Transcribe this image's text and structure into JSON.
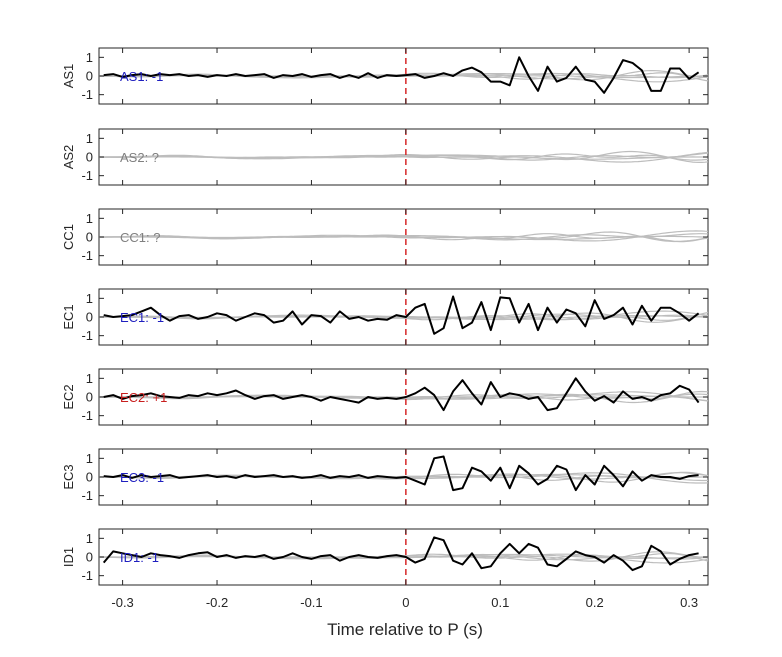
{
  "chart_data": {
    "type": "line",
    "xlabel": "Time relative to P (s)",
    "xlim": [
      -0.325,
      0.32
    ],
    "ylim": [
      -1.5,
      1.5
    ],
    "x_ticks": [
      -0.3,
      -0.2,
      -0.1,
      0,
      0.1,
      0.2,
      0.3
    ],
    "x_tick_labels": [
      "-0.3",
      "-0.2",
      "-0.1",
      "0",
      "0.1",
      "0.2",
      "0.3"
    ],
    "y_ticks": [
      -1,
      0,
      1
    ],
    "y_tick_labels": [
      "-1",
      "0",
      "1"
    ],
    "marker_line": {
      "x": 0,
      "color": "#d62728",
      "style": "dashed"
    },
    "colors": {
      "trace": "#000000",
      "background_traces": "#bdbdbd",
      "axis": "#262626"
    },
    "panels": [
      {
        "station": "AS1",
        "label": "AS1: -1",
        "label_color": "#1f1fbf",
        "trace_x": [
          -0.32,
          -0.31,
          -0.3,
          -0.29,
          -0.28,
          -0.27,
          -0.26,
          -0.25,
          -0.24,
          -0.23,
          -0.22,
          -0.21,
          -0.2,
          -0.19,
          -0.18,
          -0.17,
          -0.16,
          -0.15,
          -0.14,
          -0.13,
          -0.12,
          -0.11,
          -0.1,
          -0.09,
          -0.08,
          -0.07,
          -0.06,
          -0.05,
          -0.04,
          -0.03,
          -0.02,
          -0.01,
          0,
          0.01,
          0.02,
          0.03,
          0.04,
          0.05,
          0.06,
          0.07,
          0.08,
          0.09,
          0.1,
          0.11,
          0.12,
          0.13,
          0.14,
          0.15,
          0.16,
          0.17,
          0.18,
          0.19,
          0.2,
          0.21,
          0.22,
          0.23,
          0.24,
          0.25,
          0.26,
          0.27,
          0.28,
          0.29,
          0.3,
          0.31
        ],
        "trace_y": [
          0.05,
          0.1,
          -0.05,
          0.05,
          0.1,
          0.0,
          0.1,
          0.05,
          0.1,
          0.0,
          0.05,
          -0.05,
          0.05,
          0.0,
          0.1,
          0.0,
          0.05,
          0.1,
          -0.1,
          0.05,
          0.0,
          0.1,
          -0.05,
          0.05,
          0.1,
          -0.1,
          0.05,
          -0.1,
          0.15,
          -0.1,
          0.05,
          0.0,
          0.05,
          0.1,
          -0.1,
          0.0,
          0.15,
          0.0,
          0.3,
          0.45,
          0.2,
          -0.3,
          -0.3,
          -0.5,
          1.0,
          0.0,
          -0.8,
          0.5,
          -0.3,
          -0.1,
          0.5,
          -0.2,
          -0.3,
          -0.9,
          -0.1,
          0.85,
          0.7,
          0.3,
          -0.8,
          -0.8,
          0.4,
          0.4,
          -0.15,
          0.2
        ]
      },
      {
        "station": "AS2",
        "label": "AS2: ?",
        "label_color": "#808080",
        "trace_x": [],
        "trace_y": []
      },
      {
        "station": "CC1",
        "label": "CC1: ?",
        "label_color": "#808080",
        "trace_x": [],
        "trace_y": []
      },
      {
        "station": "EC1",
        "label": "EC1: -1",
        "label_color": "#1f1fbf",
        "trace_x": [
          -0.32,
          -0.31,
          -0.3,
          -0.29,
          -0.28,
          -0.27,
          -0.26,
          -0.25,
          -0.24,
          -0.23,
          -0.22,
          -0.21,
          -0.2,
          -0.19,
          -0.18,
          -0.17,
          -0.16,
          -0.15,
          -0.14,
          -0.13,
          -0.12,
          -0.11,
          -0.1,
          -0.09,
          -0.08,
          -0.07,
          -0.06,
          -0.05,
          -0.04,
          -0.03,
          -0.02,
          -0.01,
          0,
          0.01,
          0.02,
          0.03,
          0.04,
          0.05,
          0.06,
          0.07,
          0.08,
          0.09,
          0.1,
          0.11,
          0.12,
          0.13,
          0.14,
          0.15,
          0.16,
          0.17,
          0.18,
          0.19,
          0.2,
          0.21,
          0.22,
          0.23,
          0.24,
          0.25,
          0.26,
          0.27,
          0.28,
          0.29,
          0.3,
          0.31
        ],
        "trace_y": [
          0.1,
          0.0,
          0.05,
          0.1,
          0.3,
          0.5,
          0.1,
          -0.2,
          0.05,
          0.1,
          -0.1,
          0.0,
          0.2,
          0.1,
          -0.2,
          0.0,
          0.2,
          0.1,
          -0.3,
          -0.2,
          0.3,
          -0.4,
          0.1,
          0.05,
          -0.3,
          0.3,
          -0.1,
          0.0,
          -0.2,
          -0.1,
          -0.15,
          0.1,
          0.0,
          0.5,
          0.7,
          -0.9,
          -0.6,
          1.1,
          -0.6,
          -0.3,
          0.8,
          -0.7,
          1.05,
          1.0,
          -0.3,
          0.7,
          -0.7,
          0.5,
          -0.3,
          0.4,
          0.2,
          -0.5,
          0.9,
          -0.1,
          0.1,
          0.5,
          -0.4,
          0.6,
          -0.2,
          0.5,
          0.5,
          0.2,
          -0.2,
          0.2
        ]
      },
      {
        "station": "EC2",
        "label": "EC2: +1",
        "label_color": "#c81e1e",
        "trace_x": [
          -0.32,
          -0.31,
          -0.3,
          -0.29,
          -0.28,
          -0.27,
          -0.26,
          -0.25,
          -0.24,
          -0.23,
          -0.22,
          -0.21,
          -0.2,
          -0.19,
          -0.18,
          -0.17,
          -0.16,
          -0.15,
          -0.14,
          -0.13,
          -0.12,
          -0.11,
          -0.1,
          -0.09,
          -0.08,
          -0.07,
          -0.06,
          -0.05,
          -0.04,
          -0.03,
          -0.02,
          -0.01,
          0,
          0.01,
          0.02,
          0.03,
          0.04,
          0.05,
          0.06,
          0.07,
          0.08,
          0.09,
          0.1,
          0.11,
          0.12,
          0.13,
          0.14,
          0.15,
          0.16,
          0.17,
          0.18,
          0.19,
          0.2,
          0.21,
          0.22,
          0.23,
          0.24,
          0.25,
          0.26,
          0.27,
          0.28,
          0.29,
          0.3,
          0.31
        ],
        "trace_y": [
          0.0,
          0.1,
          -0.1,
          0.05,
          0.1,
          0.2,
          0.05,
          0.0,
          -0.05,
          0.1,
          0.05,
          0.2,
          0.1,
          0.2,
          0.35,
          0.1,
          -0.1,
          0.05,
          0.1,
          -0.1,
          0.0,
          0.1,
          0.0,
          -0.2,
          0.0,
          -0.1,
          -0.2,
          -0.3,
          0.0,
          -0.1,
          -0.05,
          -0.1,
          0.0,
          0.2,
          0.5,
          0.1,
          -0.7,
          0.3,
          0.9,
          0.2,
          -0.4,
          0.8,
          0.0,
          0.2,
          0.1,
          -0.1,
          0.0,
          -0.7,
          -0.6,
          0.2,
          1.0,
          0.3,
          -0.2,
          0.05,
          -0.3,
          0.3,
          -0.1,
          0.0,
          -0.2,
          0.1,
          0.2,
          0.6,
          0.4,
          -0.3
        ]
      },
      {
        "station": "EC3",
        "label": "EC3: -1",
        "label_color": "#1f1fbf",
        "trace_x": [
          -0.32,
          -0.31,
          -0.3,
          -0.29,
          -0.28,
          -0.27,
          -0.26,
          -0.25,
          -0.24,
          -0.23,
          -0.22,
          -0.21,
          -0.2,
          -0.19,
          -0.18,
          -0.17,
          -0.16,
          -0.15,
          -0.14,
          -0.13,
          -0.12,
          -0.11,
          -0.1,
          -0.09,
          -0.08,
          -0.07,
          -0.06,
          -0.05,
          -0.04,
          -0.03,
          -0.02,
          -0.01,
          0,
          0.01,
          0.02,
          0.03,
          0.04,
          0.05,
          0.06,
          0.07,
          0.08,
          0.09,
          0.1,
          0.11,
          0.12,
          0.13,
          0.14,
          0.15,
          0.16,
          0.17,
          0.18,
          0.19,
          0.2,
          0.21,
          0.22,
          0.23,
          0.24,
          0.25,
          0.26,
          0.27,
          0.28,
          0.29,
          0.3,
          0.31
        ],
        "trace_y": [
          0.05,
          0.0,
          0.1,
          -0.05,
          0.1,
          0.0,
          0.05,
          0.1,
          -0.05,
          0.0,
          0.05,
          0.1,
          0.0,
          0.05,
          -0.05,
          0.1,
          0.0,
          0.05,
          0.1,
          0.0,
          0.05,
          -0.05,
          0.0,
          0.1,
          -0.05,
          0.05,
          0.0,
          0.1,
          -0.05,
          0.05,
          0.0,
          -0.05,
          0.0,
          -0.2,
          -0.4,
          1.0,
          1.1,
          -0.7,
          -0.6,
          0.5,
          0.3,
          -0.2,
          0.5,
          -0.6,
          0.6,
          0.2,
          -0.4,
          -0.1,
          0.6,
          0.4,
          -0.7,
          0.1,
          -0.4,
          0.6,
          0.1,
          -0.5,
          0.3,
          -0.2,
          0.1,
          0.0,
          0.0,
          -0.1,
          0.05,
          0.1
        ]
      },
      {
        "station": "ID1",
        "label": "ID1: -1",
        "label_color": "#1f1fbf",
        "trace_x": [
          -0.32,
          -0.31,
          -0.3,
          -0.29,
          -0.28,
          -0.27,
          -0.26,
          -0.25,
          -0.24,
          -0.23,
          -0.22,
          -0.21,
          -0.2,
          -0.19,
          -0.18,
          -0.17,
          -0.16,
          -0.15,
          -0.14,
          -0.13,
          -0.12,
          -0.11,
          -0.1,
          -0.09,
          -0.08,
          -0.07,
          -0.06,
          -0.05,
          -0.04,
          -0.03,
          -0.02,
          -0.01,
          0,
          0.01,
          0.02,
          0.03,
          0.04,
          0.05,
          0.06,
          0.07,
          0.08,
          0.09,
          0.1,
          0.11,
          0.12,
          0.13,
          0.14,
          0.15,
          0.16,
          0.17,
          0.18,
          0.19,
          0.2,
          0.21,
          0.22,
          0.23,
          0.24,
          0.25,
          0.26,
          0.27,
          0.28,
          0.29,
          0.3,
          0.31
        ],
        "trace_y": [
          -0.3,
          0.3,
          0.2,
          0.1,
          0.0,
          0.2,
          0.1,
          0.05,
          -0.05,
          0.1,
          0.2,
          0.25,
          0.0,
          0.1,
          -0.05,
          0.05,
          0.0,
          0.1,
          -0.1,
          0.0,
          0.2,
          0.0,
          -0.1,
          0.05,
          0.1,
          -0.2,
          0.0,
          0.1,
          0.0,
          -0.05,
          0.05,
          0.1,
          0.0,
          -0.3,
          -0.1,
          1.05,
          0.9,
          -0.2,
          -0.4,
          0.2,
          -0.6,
          -0.5,
          0.2,
          0.7,
          0.2,
          0.7,
          0.5,
          -0.4,
          -0.5,
          -0.1,
          0.3,
          0.1,
          0.0,
          -0.3,
          0.1,
          -0.2,
          -0.7,
          -0.5,
          0.6,
          0.3,
          -0.4,
          -0.1,
          0.1,
          0.2
        ]
      }
    ]
  }
}
